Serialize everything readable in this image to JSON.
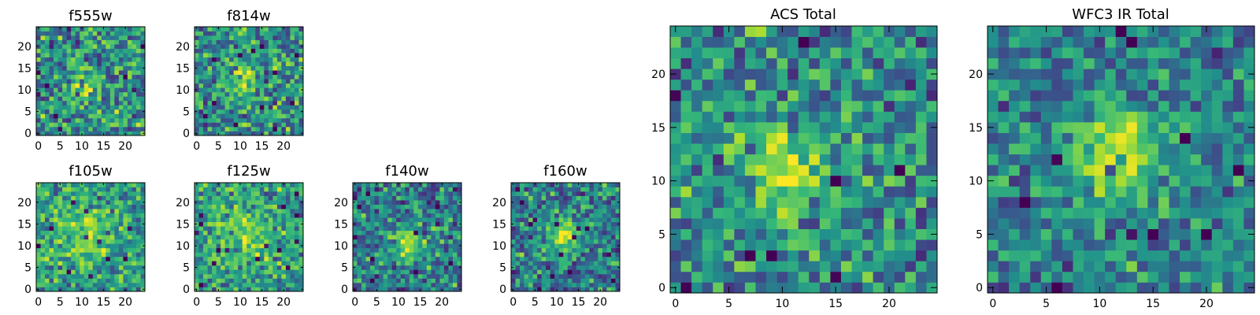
{
  "chart_data": [
    {
      "id": "f555w",
      "type": "heatmap",
      "title": "f555w",
      "colormap": "viridis",
      "size": 25,
      "seed": 11,
      "peak": {
        "cx": 10.5,
        "cy": 11,
        "sigma": 2.5,
        "amp": 0.28
      },
      "noise": 0.62,
      "base": 0.5,
      "xticks": [
        0,
        5,
        10,
        15,
        20
      ],
      "yticks": [
        0,
        5,
        10,
        15,
        20
      ],
      "xlim": [
        0,
        25
      ],
      "ylim": [
        0,
        25
      ]
    },
    {
      "id": "f814w",
      "type": "heatmap",
      "title": "f814w",
      "colormap": "viridis",
      "size": 25,
      "seed": 23,
      "peak": {
        "cx": 11,
        "cy": 12,
        "sigma": 2.8,
        "amp": 0.3
      },
      "noise": 0.58,
      "base": 0.5,
      "xticks": [
        0,
        5,
        10,
        15,
        20
      ],
      "yticks": [
        0,
        5,
        10,
        15,
        20
      ],
      "xlim": [
        0,
        25
      ],
      "ylim": [
        0,
        25
      ]
    },
    {
      "id": "f105w",
      "type": "heatmap",
      "title": "f105w",
      "colormap": "viridis",
      "size": 25,
      "seed": 37,
      "peak": {
        "cx": 11,
        "cy": 13,
        "sigma": 5,
        "amp": 0.22
      },
      "noise": 0.5,
      "base": 0.55,
      "xticks": [
        0,
        5,
        10,
        15,
        20
      ],
      "yticks": [
        0,
        5,
        10,
        15,
        20
      ],
      "xlim": [
        0,
        25
      ],
      "ylim": [
        0,
        25
      ]
    },
    {
      "id": "f125w",
      "type": "heatmap",
      "title": "f125w",
      "colormap": "viridis",
      "size": 25,
      "seed": 41,
      "peak": {
        "cx": 11,
        "cy": 12,
        "sigma": 4.5,
        "amp": 0.2
      },
      "noise": 0.5,
      "base": 0.55,
      "xticks": [
        0,
        5,
        10,
        15,
        20
      ],
      "yticks": [
        0,
        5,
        10,
        15,
        20
      ],
      "xlim": [
        0,
        25
      ],
      "ylim": [
        0,
        25
      ]
    },
    {
      "id": "f140w",
      "type": "heatmap",
      "title": "f140w",
      "colormap": "viridis",
      "size": 25,
      "seed": 53,
      "peak": {
        "cx": 11.5,
        "cy": 10,
        "sigma": 2.5,
        "amp": 0.4
      },
      "noise": 0.55,
      "base": 0.45,
      "xticks": [
        0,
        5,
        10,
        15,
        20
      ],
      "yticks": [
        0,
        5,
        10,
        15,
        20
      ],
      "xlim": [
        0,
        25
      ],
      "ylim": [
        0,
        25
      ]
    },
    {
      "id": "f160w",
      "type": "heatmap",
      "title": "f160w",
      "colormap": "viridis",
      "size": 25,
      "seed": 67,
      "peak": {
        "cx": 11.5,
        "cy": 12,
        "sigma": 3,
        "amp": 0.4
      },
      "noise": 0.55,
      "base": 0.45,
      "xticks": [
        0,
        5,
        10,
        15,
        20
      ],
      "yticks": [
        0,
        5,
        10,
        15,
        20
      ],
      "xlim": [
        0,
        25
      ],
      "ylim": [
        0,
        25
      ]
    },
    {
      "id": "acs-total",
      "type": "heatmap",
      "title": "ACS Total",
      "colormap": "viridis",
      "size": 25,
      "seed": 79,
      "peak": {
        "cx": 10.5,
        "cy": 11,
        "sigma": 2.6,
        "amp": 0.35
      },
      "noise": 0.55,
      "base": 0.5,
      "xticks": [
        0,
        5,
        10,
        15,
        20
      ],
      "yticks": [
        0,
        5,
        10,
        15,
        20
      ],
      "xlim": [
        0,
        25
      ],
      "ylim": [
        0,
        25
      ]
    },
    {
      "id": "wfc3-total",
      "type": "heatmap",
      "title": "WFC3 IR Total",
      "colormap": "viridis",
      "size": 25,
      "seed": 97,
      "peak": {
        "cx": 11.5,
        "cy": 12.5,
        "sigma": 3,
        "amp": 0.42
      },
      "noise": 0.45,
      "base": 0.45,
      "xticks": [
        0,
        5,
        10,
        15,
        20
      ],
      "yticks": [
        0,
        5,
        10,
        15,
        20
      ],
      "xlim": [
        0,
        25
      ],
      "ylim": [
        0,
        25
      ]
    }
  ]
}
